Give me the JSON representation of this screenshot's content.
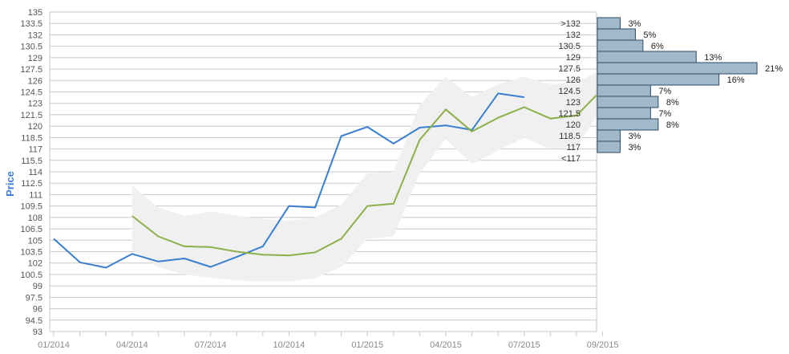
{
  "chart_data": {
    "type": "line",
    "ylabel": "Price",
    "ylim": [
      93,
      135
    ],
    "y_ticks": [
      "135",
      "133.5",
      "132",
      "130.5",
      "129",
      "127.5",
      "126",
      "124.5",
      "123",
      "121.5",
      "120",
      "118.5",
      "117",
      "115.5",
      "114",
      "112.5",
      "111",
      "109.5",
      "108",
      "106.5",
      "105",
      "103.5",
      "102",
      "100.5",
      "99",
      "97.5",
      "96",
      "94.5",
      "93"
    ],
    "x_tick_labels": [
      "01/2014",
      "04/2014",
      "07/2014",
      "10/2014",
      "01/2015",
      "04/2015",
      "07/2015",
      "09/2015"
    ],
    "grid": true,
    "series": [
      {
        "color": "#3a7fcf",
        "x": [
          "2014-01",
          "2014-02",
          "2014-03",
          "2014-04",
          "2014-05",
          "2014-06",
          "2014-07",
          "2014-08",
          "2014-09",
          "2014-10",
          "2014-11",
          "2014-12",
          "2015-01",
          "2015-02",
          "2015-03",
          "2015-04",
          "2015-05",
          "2015-06",
          "2015-07"
        ],
        "values": [
          105.2,
          102.1,
          101.4,
          103.2,
          102.2,
          102.6,
          101.5,
          102.8,
          104.2,
          109.5,
          109.3,
          118.7,
          119.9,
          117.7,
          119.8,
          120.1,
          119.5,
          124.3,
          123.8
        ]
      },
      {
        "color": "#8cb04a",
        "x": [
          "2014-04",
          "2014-05",
          "2014-06",
          "2014-07",
          "2014-08",
          "2014-09",
          "2014-10",
          "2014-11",
          "2014-12",
          "2015-01",
          "2015-02",
          "2015-03",
          "2015-04",
          "2015-05",
          "2015-06",
          "2015-07",
          "2015-08",
          "2015-09",
          "2015-10"
        ],
        "values": [
          108.2,
          105.5,
          104.2,
          104.1,
          103.5,
          103.1,
          103.0,
          103.4,
          105.2,
          109.5,
          109.8,
          118.2,
          122.2,
          119.3,
          121.1,
          122.5,
          121.0,
          121.4,
          124.9
        ]
      }
    ],
    "band": {
      "color": "#f0f0f0",
      "x": [
        "2014-04",
        "2014-05",
        "2014-06",
        "2014-07",
        "2014-08",
        "2014-09",
        "2014-10",
        "2014-11",
        "2014-12",
        "2015-01",
        "2015-02",
        "2015-03",
        "2015-04",
        "2015-05",
        "2015-06",
        "2015-07",
        "2015-08",
        "2015-09",
        "2015-10"
      ],
      "upper": [
        112.2,
        109.3,
        108.2,
        108.8,
        108.2,
        107.8,
        107.6,
        108.0,
        109.7,
        113.8,
        114.0,
        122.8,
        126.5,
        123.8,
        125.5,
        126.5,
        125.5,
        125.8,
        127.4
      ],
      "lower": [
        103.7,
        101.5,
        100.5,
        100.1,
        99.7,
        99.6,
        99.6,
        100.0,
        101.5,
        105.2,
        105.5,
        113.8,
        118.3,
        115.0,
        116.8,
        118.5,
        117.0,
        117.3,
        122.5
      ]
    },
    "histogram": {
      "bar_color": "#a1b9c8",
      "bins": [
        {
          "label": ">132",
          "pct": "3%",
          "value": 3
        },
        {
          "label": "132",
          "pct": "5%",
          "value": 5
        },
        {
          "label": "130.5",
          "pct": "6%",
          "value": 6
        },
        {
          "label": "129",
          "pct": "13%",
          "value": 13
        },
        {
          "label": "127.5",
          "pct": "21%",
          "value": 21
        },
        {
          "label": "126",
          "pct": "16%",
          "value": 16
        },
        {
          "label": "124.5",
          "pct": "7%",
          "value": 7
        },
        {
          "label": "123",
          "pct": "8%",
          "value": 8
        },
        {
          "label": "121.5",
          "pct": "7%",
          "value": 7
        },
        {
          "label": "120",
          "pct": "8%",
          "value": 8
        },
        {
          "label": "118.5",
          "pct": "3%",
          "value": 3
        },
        {
          "label": "117",
          "pct": "3%",
          "value": 3
        },
        {
          "label": "<117",
          "pct": "",
          "value": 0
        }
      ]
    }
  }
}
